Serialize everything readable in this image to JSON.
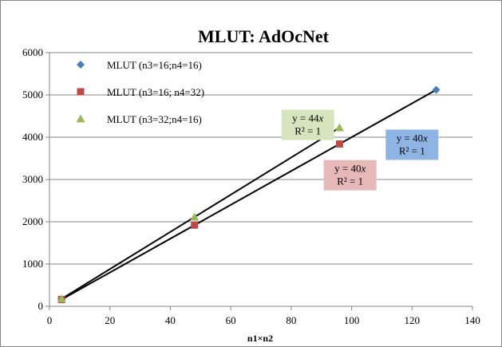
{
  "chart_data": {
    "type": "scatter",
    "title": "MLUT: AdOcNet",
    "xlabel": "n1×n2",
    "ylabel": "",
    "xlim": [
      0,
      140
    ],
    "ylim": [
      0,
      6000
    ],
    "x_ticks": [
      "0",
      "20",
      "40",
      "60",
      "80",
      "100",
      "120",
      "140"
    ],
    "y_ticks": [
      "0",
      "1000",
      "2000",
      "3000",
      "4000",
      "5000",
      "6000"
    ],
    "grid": "horizontal",
    "legend_position": "top-left",
    "series": [
      {
        "name": "MLUT (n3=16;n4=16)",
        "marker": "diamond",
        "color": "#4a7ebb",
        "x": [
          4,
          128
        ],
        "y": [
          160,
          5120
        ]
      },
      {
        "name": "MLUT (n3=16; n4=32)",
        "marker": "square",
        "color": "#be4b48",
        "x": [
          4,
          48,
          96
        ],
        "y": [
          160,
          1920,
          3840
        ]
      },
      {
        "name": "MLUT (n3=32;n4=16)",
        "marker": "triangle",
        "color": "#98b954",
        "x": [
          4,
          48,
          96
        ],
        "y": [
          176,
          2112,
          4224
        ]
      }
    ],
    "trendlines": [
      {
        "slope": 44,
        "x_range": [
          4,
          96
        ],
        "color": "#000000"
      },
      {
        "slope": 40,
        "x_range": [
          4,
          128
        ],
        "color": "#000000"
      }
    ],
    "annotations": [
      {
        "line1_prefix": "y = 44",
        "line1_var": "x",
        "line2": "R² = 1",
        "bg": "#d7e4bd",
        "anchor_x": 85.5,
        "anchor_y": 4650
      },
      {
        "line1_prefix": "y = 40",
        "line1_var": "x",
        "line2": "R² = 1",
        "bg": "#e6b9b8",
        "anchor_x": 99.5,
        "anchor_y": 3460
      },
      {
        "line1_prefix": "y = 40",
        "line1_var": "x",
        "line2": "R² = 1",
        "bg": "#8db4e2",
        "anchor_x": 120,
        "anchor_y": 4180
      }
    ]
  }
}
